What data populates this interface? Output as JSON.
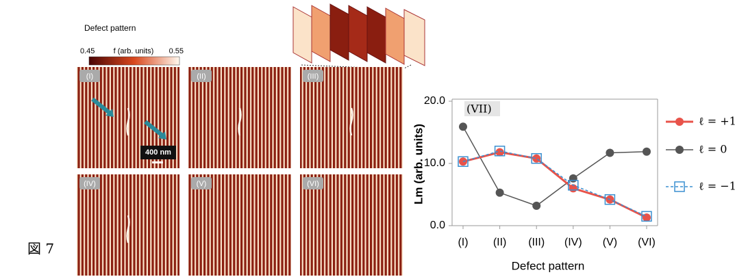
{
  "figure_label": "図 7",
  "patterns": {
    "title": "Defect pattern",
    "colorbar": {
      "min_label": "0.45",
      "label": "f (arb. units)",
      "max_label": "0.55"
    },
    "panels": [
      "(I)",
      "(II)",
      "(III)",
      "(IV)",
      "(V)",
      "(VI)"
    ],
    "scale_bar": "400 nm"
  },
  "chart_data": {
    "type": "line",
    "annotation": "(VII)",
    "x_label": "Defect pattern",
    "y_label": "Lm (arb. units)",
    "categories": [
      "(I)",
      "(II)",
      "(III)",
      "(IV)",
      "(V)",
      "(VI)"
    ],
    "series": [
      {
        "name": "ℓ = +1",
        "color": "#e8534a",
        "values": [
          10.3,
          11.8,
          10.8,
          6.0,
          4.2,
          1.3
        ]
      },
      {
        "name": "ℓ = 0",
        "color": "#555555",
        "values": [
          15.9,
          5.3,
          3.2,
          7.6,
          11.7,
          11.9
        ]
      },
      {
        "name": "ℓ = −1",
        "color": "#3a8fd0",
        "values": [
          10.3,
          12.0,
          10.8,
          6.5,
          4.2,
          1.5
        ]
      }
    ],
    "ylim": [
      0,
      20
    ],
    "yticks": [
      {
        "value": 0,
        "label": "0.0"
      },
      {
        "value": 10,
        "label": "10.0"
      },
      {
        "value": 20,
        "label": "20.0"
      }
    ]
  }
}
